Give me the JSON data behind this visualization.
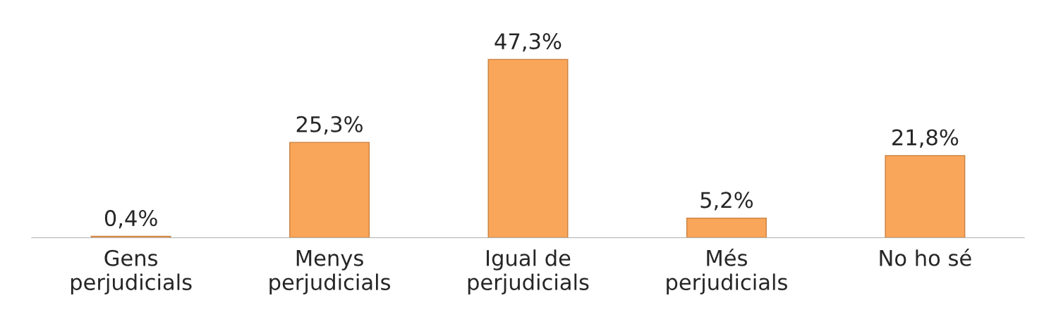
{
  "chart_data": {
    "type": "bar",
    "categories": [
      "Gens\nperjudicials",
      "Menys\nperjudicials",
      "Igual de\nperjudicials",
      "Més\nperjudicials",
      "No ho sé"
    ],
    "values": [
      0.4,
      25.3,
      47.3,
      5.2,
      21.8
    ],
    "value_labels": [
      "0,4%",
      "25,3%",
      "47,3%",
      "5,2%",
      "21,8%"
    ],
    "color": "#f9a55a",
    "grid": false,
    "legend": false
  }
}
